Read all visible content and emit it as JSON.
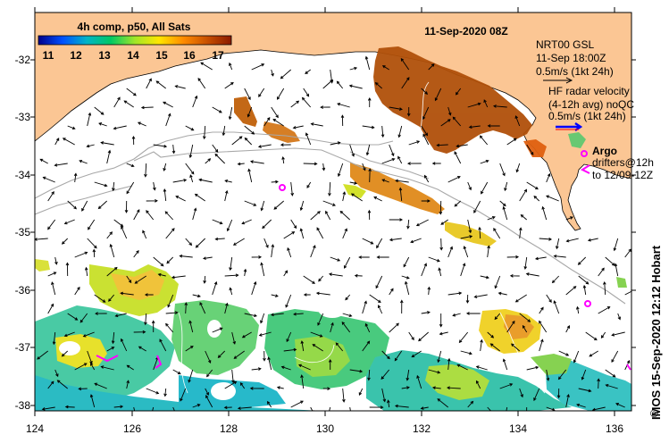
{
  "title": "11-Sep-2020 08Z",
  "colorbar": {
    "title": "4h comp, p50, All Sats",
    "ticks": [
      "11",
      "12",
      "13",
      "14",
      "15",
      "16",
      "17"
    ],
    "colors": [
      "#00008b",
      "#0050ff",
      "#00b4c8",
      "#00c864",
      "#a0e628",
      "#ffe600",
      "#ff8c00",
      "#c85000",
      "#8b1a00"
    ]
  },
  "legend": {
    "model_name": "NRT00 GSL",
    "model_time": "11-Sep 18:00Z",
    "model_scale": "0.5m/s (1kt 24h)",
    "hf_line1": "HF radar velocity",
    "hf_line2": "(4-12h avg) noQC",
    "hf_scale": "0.5m/s (1kt 24h)",
    "argo_label": "Argo",
    "drifters_line1": "drifters@12h",
    "drifters_line2": "to 12/09-12Z"
  },
  "axes": {
    "x_ticks": [
      "124",
      "126",
      "128",
      "130",
      "132",
      "134",
      "136"
    ],
    "y_ticks": [
      "-32",
      "-33",
      "-34",
      "-35",
      "-36",
      "-37",
      "-38"
    ]
  },
  "credit": "IMOS 15-Sep-2020 12:12 Hobart",
  "copyright_symbol": "©",
  "colors": {
    "land": "#fbc694",
    "ocean": "#ffffff",
    "isobath": "#a8a8a8",
    "argo": "#ff00ff",
    "hf_arrow": "#0000ff"
  }
}
